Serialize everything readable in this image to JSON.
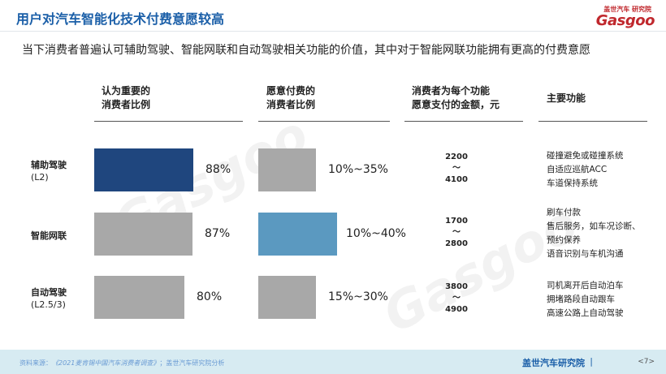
{
  "header": {
    "title": "用户对汽车智能化技术付费意愿较高",
    "logo_small": "盖世汽车 研究院",
    "logo_main": "Gasgoo"
  },
  "subtitle": "当下消费者普遍认可辅助驾驶、智能网联和自动驾驶相关功能的价值，其中对于智能网联功能拥有更高的付费意愿",
  "columns": {
    "importance": "认为重要的\n消费者比例",
    "willing": "愿意付费的\n消费者比例",
    "amount": "消费者为每个功能\n愿意支付的金额，元",
    "features": "主要功能"
  },
  "rows": [
    {
      "name": "辅助驾驶",
      "sub": "(L2)",
      "importance_pct": 88,
      "importance_label": "88%",
      "willing_label": "10%~35%",
      "price_low": "2200",
      "price_sep": "～",
      "price_high": "4100",
      "features": [
        "碰撞避免或碰撞系统",
        "自适应巡航ACC",
        "车道保持系统"
      ]
    },
    {
      "name": "智能网联",
      "sub": "",
      "importance_pct": 87,
      "importance_label": "87%",
      "willing_label": "10%~40%",
      "price_low": "1700",
      "price_sep": "～",
      "price_high": "2800",
      "features": [
        "刷车付款",
        "售后服务，如车况诊断、",
        "预约保养",
        "语音识别与车机沟通"
      ]
    },
    {
      "name": "自动驾驶",
      "sub": "(L2.5/3)",
      "importance_pct": 80,
      "importance_label": "80%",
      "willing_label": "15%~30%",
      "price_low": "3800",
      "price_sep": "～",
      "price_high": "4900",
      "features": [
        "司机离开后自动泊车",
        "拥堵路段自动跟车",
        "高速公路上自动驾驶"
      ]
    }
  ],
  "colors": {
    "highlight_importance": "#1f467e",
    "highlight_willing": "#5b99c0",
    "bar_gray": "#a8a8a8",
    "title_blue": "#1b5fa8",
    "footer_bg": "#d7ebf2"
  },
  "footer": {
    "source_prefix": "资料来源：",
    "source_name": "《2021麦肯锡中国汽车消费者调查》",
    "source_suffix": "；盖世汽车研究院分析",
    "org": "盖世汽车研究院",
    "separator": "|",
    "page": "<7>"
  }
}
